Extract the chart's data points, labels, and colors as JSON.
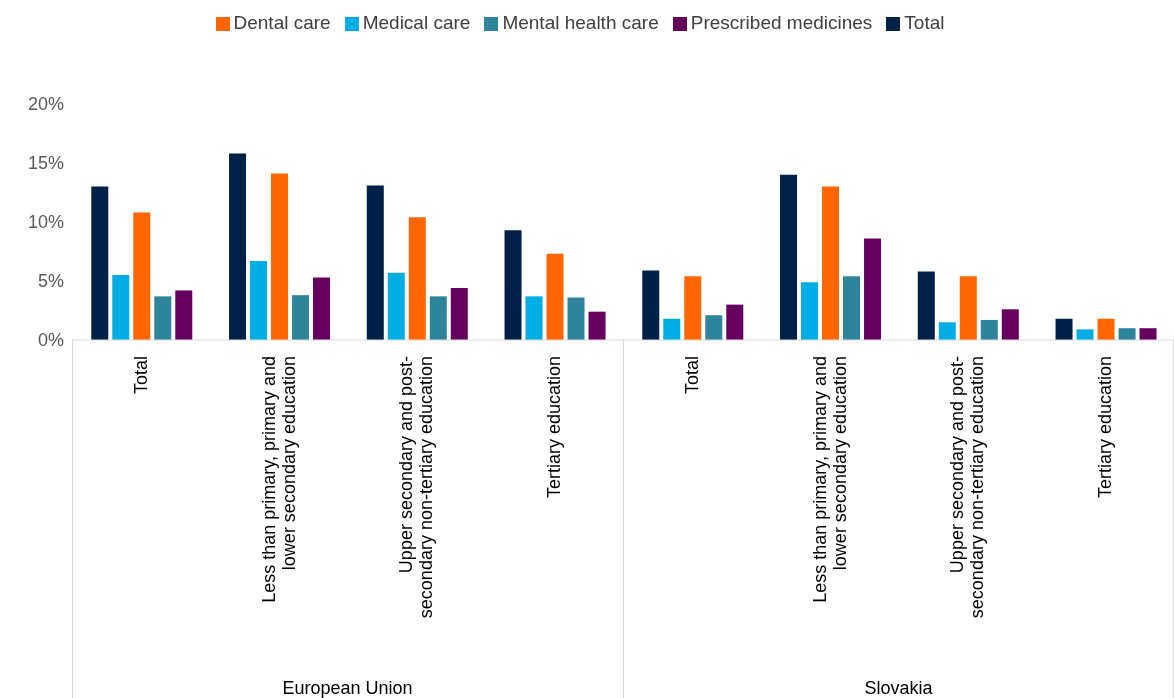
{
  "chart_data": {
    "type": "bar",
    "categories": [
      "Total",
      "Less than primary, primary and lower secondary education",
      "Upper secondary and post-secondary non-tertiary education",
      "Tertiary education",
      "Total",
      "Less than primary, primary and lower secondary education",
      "Upper secondary and post-secondary non-tertiary education",
      "Tertiary education"
    ],
    "series": [
      {
        "name": "Total",
        "color": "#002147",
        "values": [
          13.0,
          15.8,
          13.1,
          9.3,
          5.9,
          14.0,
          5.8,
          1.8
        ]
      },
      {
        "name": "Medical care",
        "color": "#00ade4",
        "values": [
          5.5,
          6.7,
          5.7,
          3.7,
          1.8,
          4.9,
          1.5,
          0.9
        ]
      },
      {
        "name": "Dental care",
        "color": "#ff6600",
        "values": [
          10.8,
          14.1,
          10.4,
          7.3,
          5.4,
          13.0,
          5.4,
          1.8
        ]
      },
      {
        "name": "Mental health care",
        "color": "#2e849b",
        "values": [
          3.7,
          3.8,
          3.7,
          3.6,
          2.1,
          5.4,
          1.7,
          1.0
        ]
      },
      {
        "name": "Prescribed medicines",
        "color": "#66005e",
        "values": [
          4.2,
          5.3,
          4.4,
          2.4,
          3.0,
          8.6,
          2.6,
          1.0
        ]
      }
    ],
    "ylim": [
      0,
      20
    ],
    "yticks": [
      {
        "value": 0,
        "label": "0%"
      },
      {
        "value": 5,
        "label": "5%"
      },
      {
        "value": 10,
        "label": "10%"
      },
      {
        "value": 15,
        "label": "15%"
      },
      {
        "value": 20,
        "label": "20%"
      }
    ],
    "annotations": [
      "European Union",
      "Slovakia"
    ],
    "grid": false,
    "legend": "top"
  }
}
